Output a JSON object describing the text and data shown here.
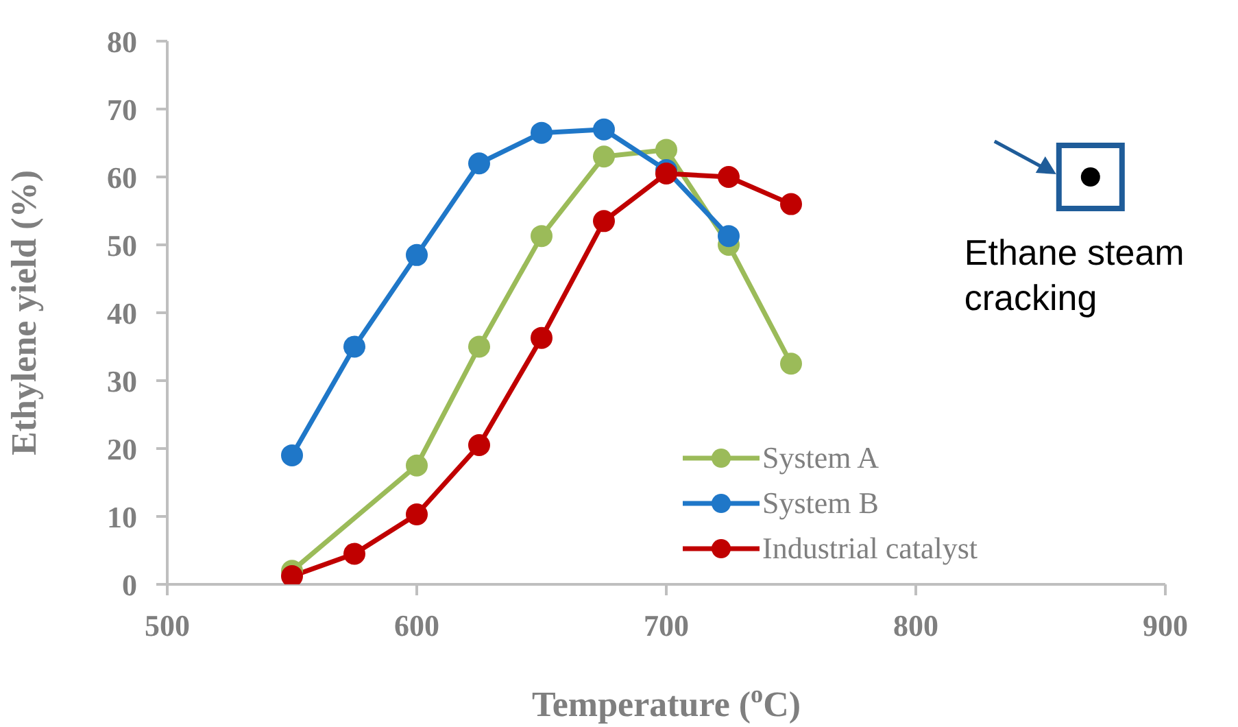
{
  "chart_data": {
    "type": "line",
    "xlabel": "Temperature ($^{o}$C)",
    "ylabel": "Ethylene yield (%)",
    "xlim": [
      500,
      900
    ],
    "xticks": [
      500,
      600,
      700,
      800,
      900
    ],
    "ylim": [
      0,
      80
    ],
    "yticks": [
      0,
      10,
      20,
      30,
      40,
      50,
      60,
      70,
      80
    ],
    "grid": false,
    "legend": "bottom right",
    "marker": "circle",
    "line_style": "solid",
    "series": [
      {
        "name": "System A",
        "color": "#9bbb59",
        "x": [
          550,
          600,
          625,
          650,
          675,
          700,
          725,
          750
        ],
        "values": [
          2,
          17.5,
          35,
          51.3,
          63,
          64,
          50,
          32.5
        ]
      },
      {
        "name": "System B",
        "color": "#1f77c8",
        "x": [
          550,
          575,
          600,
          625,
          650,
          675,
          700,
          725
        ],
        "values": [
          19,
          35,
          48.5,
          62,
          66.5,
          67,
          61,
          51.3
        ]
      },
      {
        "name": "Industrial catalyst",
        "color": "#c00000",
        "x": [
          550,
          575,
          600,
          625,
          650,
          675,
          700,
          725,
          750
        ],
        "values": [
          1.2,
          4.5,
          10.3,
          20.5,
          36.3,
          53.5,
          60.5,
          60,
          56
        ]
      },
      {
        "type": "scatter",
        "color": "#000000",
        "marker": "circle",
        "x": [
          870
        ],
        "values": [
          60
        ]
      }
    ],
    "annotations": [
      {
        "text": "Ethane steam cracking",
        "x": 870,
        "y": 60
      }
    ]
  }
}
